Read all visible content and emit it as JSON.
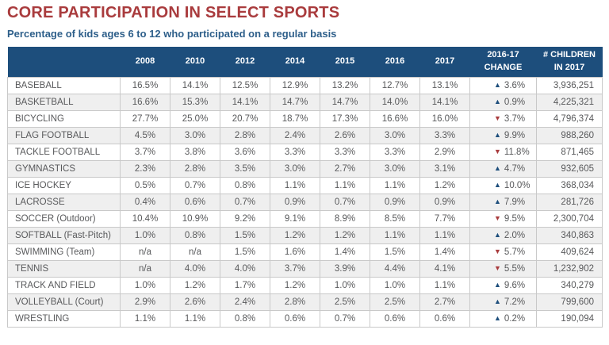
{
  "header": {
    "title": "CORE PARTICIPATION IN SELECT SPORTS",
    "subtitle": "Percentage of kids ages 6 to 12 who participated on a regular basis"
  },
  "colors": {
    "title_red": "#A93B3D",
    "subtitle_blue": "#2E5F8A",
    "header_bg": "#1D4E7C",
    "header_text": "#FFFFFF",
    "cell_text": "#58595B",
    "row_bg": "#FFFFFF",
    "row_alt_bg": "#EFEFEF",
    "border": "#C9C9C9",
    "up_arrow": "#1D4E7C",
    "down_arrow": "#A93B3D"
  },
  "icons": {
    "up": "▲",
    "down": "▼"
  },
  "chart_data": {
    "type": "table",
    "title": "CORE PARTICIPATION IN SELECT SPORTS",
    "subtitle": "Percentage of kids ages 6 to 12 who participated on a regular basis",
    "year_columns": [
      "2008",
      "2010",
      "2012",
      "2014",
      "2015",
      "2016",
      "2017"
    ],
    "change_header": [
      "2016-17",
      "CHANGE"
    ],
    "children_header": [
      "# CHILDREN",
      "IN 2017"
    ],
    "rows": [
      {
        "sport": "BASEBALL",
        "values": [
          "16.5%",
          "14.1%",
          "12.5%",
          "12.9%",
          "13.2%",
          "12.7%",
          "13.1%"
        ],
        "direction": "up",
        "change": "3.6%",
        "children": "3,936,251"
      },
      {
        "sport": "BASKETBALL",
        "values": [
          "16.6%",
          "15.3%",
          "14.1%",
          "14.7%",
          "14.7%",
          "14.0%",
          "14.1%"
        ],
        "direction": "up",
        "change": "0.9%",
        "children": "4,225,321"
      },
      {
        "sport": "BICYCLING",
        "values": [
          "27.7%",
          "25.0%",
          "20.7%",
          "18.7%",
          "17.3%",
          "16.6%",
          "16.0%"
        ],
        "direction": "down",
        "change": "3.7%",
        "children": "4,796,374"
      },
      {
        "sport": "FLAG FOOTBALL",
        "values": [
          "4.5%",
          "3.0%",
          "2.8%",
          "2.4%",
          "2.6%",
          "3.0%",
          "3.3%"
        ],
        "direction": "up",
        "change": "9.9%",
        "children": "988,260"
      },
      {
        "sport": "TACKLE FOOTBALL",
        "values": [
          "3.7%",
          "3.8%",
          "3.6%",
          "3.3%",
          "3.3%",
          "3.3%",
          "2.9%"
        ],
        "direction": "down",
        "change": "11.8%",
        "children": "871,465"
      },
      {
        "sport": "GYMNASTICS",
        "values": [
          "2.3%",
          "2.8%",
          "3.5%",
          "3.0%",
          "2.7%",
          "3.0%",
          "3.1%"
        ],
        "direction": "up",
        "change": "4.7%",
        "children": "932,605"
      },
      {
        "sport": "ICE HOCKEY",
        "values": [
          "0.5%",
          "0.7%",
          "0.8%",
          "1.1%",
          "1.1%",
          "1.1%",
          "1.2%"
        ],
        "direction": "up",
        "change": "10.0%",
        "children": "368,034"
      },
      {
        "sport": "LACROSSE",
        "values": [
          "0.4%",
          "0.6%",
          "0.7%",
          "0.9%",
          "0.7%",
          "0.9%",
          "0.9%"
        ],
        "direction": "up",
        "change": "7.9%",
        "children": "281,726"
      },
      {
        "sport": "SOCCER (Outdoor)",
        "values": [
          "10.4%",
          "10.9%",
          "9.2%",
          "9.1%",
          "8.9%",
          "8.5%",
          "7.7%"
        ],
        "direction": "down",
        "change": "9.5%",
        "children": "2,300,704"
      },
      {
        "sport": "SOFTBALL (Fast-Pitch)",
        "values": [
          "1.0%",
          "0.8%",
          "1.5%",
          "1.2%",
          "1.2%",
          "1.1%",
          "1.1%"
        ],
        "direction": "up",
        "change": "2.0%",
        "children": "340,863"
      },
      {
        "sport": "SWIMMING (Team)",
        "values": [
          "n/a",
          "n/a",
          "1.5%",
          "1.6%",
          "1.4%",
          "1.5%",
          "1.4%"
        ],
        "direction": "down",
        "change": "5.7%",
        "children": "409,624"
      },
      {
        "sport": "TENNIS",
        "values": [
          "n/a",
          "4.0%",
          "4.0%",
          "3.7%",
          "3.9%",
          "4.4%",
          "4.1%"
        ],
        "direction": "down",
        "change": "5.5%",
        "children": "1,232,902"
      },
      {
        "sport": "TRACK AND FIELD",
        "values": [
          "1.0%",
          "1.2%",
          "1.7%",
          "1.2%",
          "1.0%",
          "1.0%",
          "1.1%"
        ],
        "direction": "up",
        "change": "9.6%",
        "children": "340,279"
      },
      {
        "sport": "VOLLEYBALL (Court)",
        "values": [
          "2.9%",
          "2.6%",
          "2.4%",
          "2.8%",
          "2.5%",
          "2.5%",
          "2.7%"
        ],
        "direction": "up",
        "change": "7.2%",
        "children": "799,600"
      },
      {
        "sport": "WRESTLING",
        "values": [
          "1.1%",
          "1.1%",
          "0.8%",
          "0.6%",
          "0.7%",
          "0.6%",
          "0.6%"
        ],
        "direction": "up",
        "change": "0.2%",
        "children": "190,094"
      }
    ]
  }
}
